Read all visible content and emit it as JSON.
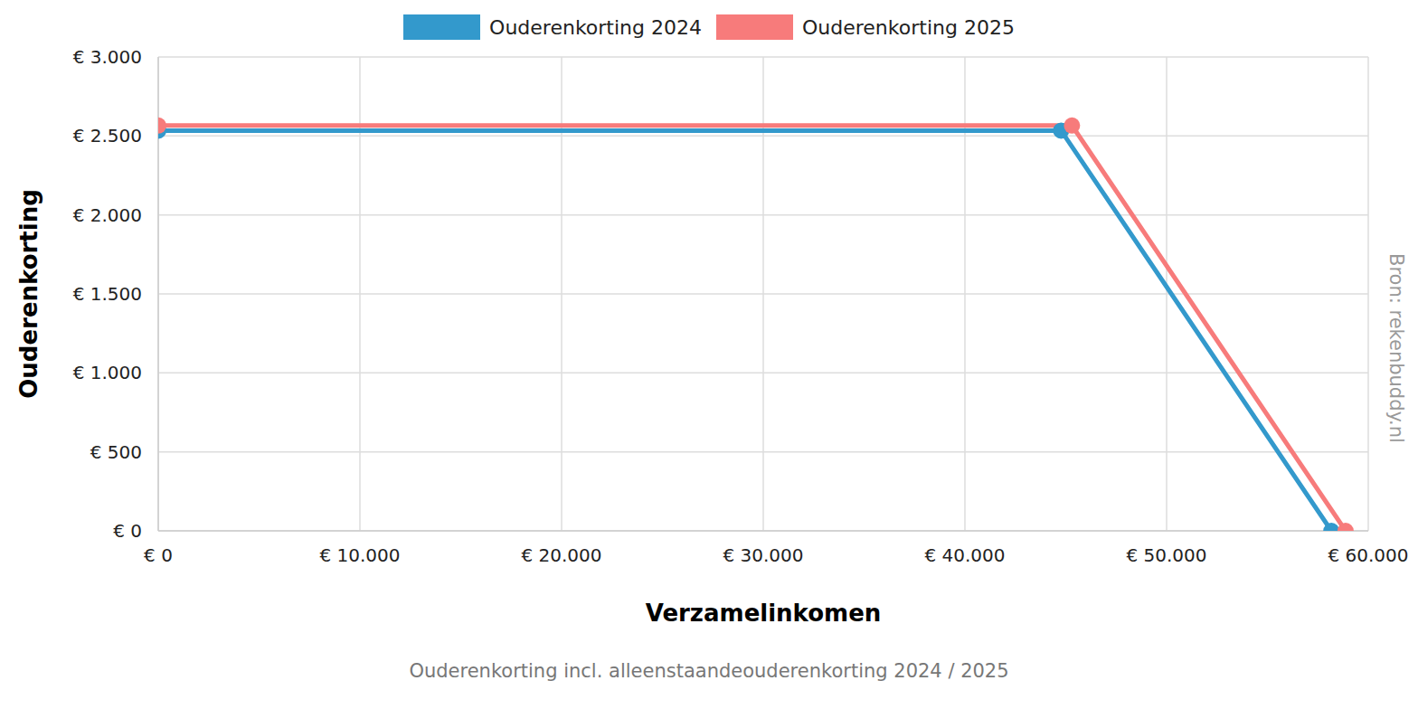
{
  "chart_data": {
    "type": "line",
    "title": "Ouderenkorting incl. alleenstaandeouderenkorting 2024 / 2025",
    "x_label": "Verzamelinkomen",
    "y_label": "Ouderenkorting",
    "annotation": "Bron: rekenbuddy.nl",
    "series": [
      {
        "name": "Ouderenkorting 2024",
        "color": "#3399cc",
        "x": [
          0,
          44770,
          58170
        ],
        "values": [
          2534,
          2534,
          0
        ]
      },
      {
        "name": "Ouderenkorting 2025",
        "color": "#f77b7b",
        "x": [
          0,
          45308,
          58875
        ],
        "values": [
          2566,
          2566,
          0
        ]
      }
    ],
    "xlim": [
      0,
      60000
    ],
    "xticks": [
      {
        "value": 0,
        "label": "€ 0"
      },
      {
        "value": 10000,
        "label": "€ 10.000"
      },
      {
        "value": 20000,
        "label": "€ 20.000"
      },
      {
        "value": 30000,
        "label": "€ 30.000"
      },
      {
        "value": 40000,
        "label": "€ 40.000"
      },
      {
        "value": 50000,
        "label": "€ 50.000"
      },
      {
        "value": 60000,
        "label": "€ 60.000"
      }
    ],
    "ylim": [
      0,
      3000
    ],
    "yticks": [
      {
        "value": 0,
        "label": "€ 0"
      },
      {
        "value": 500,
        "label": "€ 500"
      },
      {
        "value": 1000,
        "label": "€ 1.000"
      },
      {
        "value": 1500,
        "label": "€ 1.500"
      },
      {
        "value": 2000,
        "label": "€ 2.000"
      },
      {
        "value": 2500,
        "label": "€ 2.500"
      },
      {
        "value": 3000,
        "label": "€ 3.000"
      }
    ],
    "grid": true,
    "legend": "top",
    "marker": "circle"
  }
}
